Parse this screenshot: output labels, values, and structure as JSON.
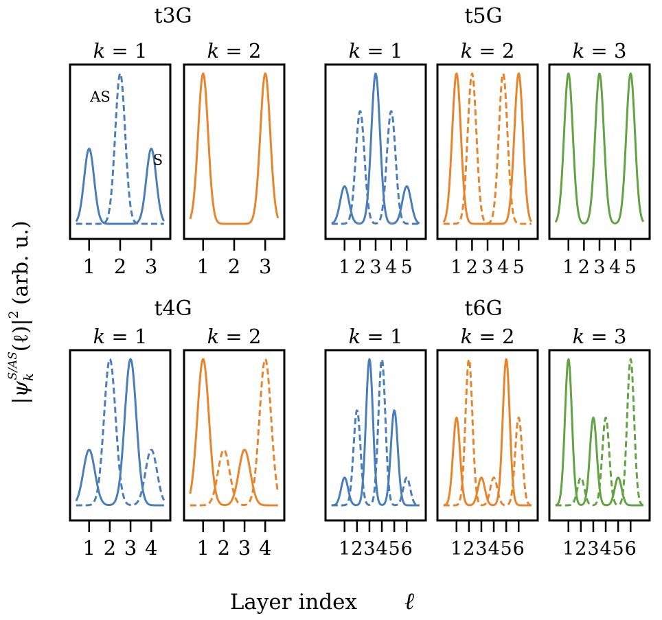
{
  "y_axis_label": "|ψ_k^{S/AS}(ℓ)|² (arb. u.)",
  "y_axis_label_parts": {
    "pre": "|",
    "psi": "ψ",
    "sub": "k",
    "sup": "S/AS",
    "arg": "(ℓ)",
    "post": "|",
    "power": "2",
    "units": "(arb. u.)"
  },
  "x_axis_label": "Layer index",
  "x_axis_symbol": "ℓ",
  "k_prefix": "k",
  "k_eq": "=",
  "legend_annotations": {
    "as": "AS",
    "s": "S"
  },
  "colors": {
    "k1": "#4a7ebb",
    "k2": "#e6852b",
    "k3": "#62a344",
    "frame": "#000000"
  },
  "chart_data": [
    {
      "type": "line",
      "group": "t3G",
      "title": "t3G",
      "layers": [
        1,
        2,
        3
      ],
      "tick_labels": [
        "1",
        "2",
        "3"
      ],
      "panels": [
        {
          "k": 1,
          "k_label": "1",
          "color": "k1",
          "series": [
            {
              "name": "S",
              "style": "solid",
              "values": [
                0.5,
                0.0,
                0.5
              ]
            },
            {
              "name": "AS",
              "style": "dashed",
              "values": [
                0.0,
                1.0,
                0.0
              ]
            }
          ]
        },
        {
          "k": 2,
          "k_label": "2",
          "color": "k2",
          "series": [
            {
              "name": "S",
              "style": "solid",
              "values": [
                1.0,
                0.0,
                1.0
              ]
            }
          ]
        }
      ]
    },
    {
      "type": "line",
      "group": "t5G",
      "title": "t5G",
      "layers": [
        1,
        2,
        3,
        4,
        5
      ],
      "tick_labels": [
        "1",
        "2",
        "3",
        "4",
        "5"
      ],
      "panels": [
        {
          "k": 1,
          "k_label": "1",
          "color": "k1",
          "series": [
            {
              "name": "S",
              "style": "solid",
              "values": [
                0.25,
                0.0,
                1.0,
                0.0,
                0.25
              ]
            },
            {
              "name": "AS",
              "style": "dashed",
              "values": [
                0.0,
                0.75,
                0.0,
                0.75,
                0.0
              ]
            }
          ]
        },
        {
          "k": 2,
          "k_label": "2",
          "color": "k2",
          "series": [
            {
              "name": "S",
              "style": "solid",
              "values": [
                1.0,
                0.0,
                0.0,
                0.0,
                1.0
              ]
            },
            {
              "name": "AS",
              "style": "dashed",
              "values": [
                0.0,
                1.0,
                0.0,
                1.0,
                0.0
              ]
            }
          ]
        },
        {
          "k": 3,
          "k_label": "3",
          "color": "k3",
          "series": [
            {
              "name": "S",
              "style": "solid",
              "values": [
                1.0,
                0.0,
                1.0,
                0.0,
                1.0
              ]
            }
          ]
        }
      ]
    },
    {
      "type": "line",
      "group": "t4G",
      "title": "t4G",
      "layers": [
        1,
        2,
        3,
        4
      ],
      "tick_labels": [
        "1",
        "2",
        "3",
        "4"
      ],
      "panels": [
        {
          "k": 1,
          "k_label": "1",
          "color": "k1",
          "series": [
            {
              "name": "S",
              "style": "solid",
              "values": [
                0.38,
                0.0,
                1.0,
                0.0
              ]
            },
            {
              "name": "AS",
              "style": "dashed",
              "values": [
                0.0,
                1.0,
                0.0,
                0.38
              ]
            }
          ]
        },
        {
          "k": 2,
          "k_label": "2",
          "color": "k2",
          "series": [
            {
              "name": "S",
              "style": "solid",
              "values": [
                1.0,
                0.0,
                0.38,
                0.0
              ]
            },
            {
              "name": "AS",
              "style": "dashed",
              "values": [
                0.0,
                0.38,
                0.0,
                1.0
              ]
            }
          ]
        }
      ]
    },
    {
      "type": "line",
      "group": "t6G",
      "title": "t6G",
      "layers": [
        1,
        2,
        3,
        4,
        5,
        6
      ],
      "tick_labels": [
        "1",
        "2",
        "3",
        "4",
        "5",
        "6"
      ],
      "panels": [
        {
          "k": 1,
          "k_label": "1",
          "color": "k1",
          "series": [
            {
              "name": "S",
              "style": "solid",
              "values": [
                0.19,
                0.0,
                1.0,
                0.0,
                0.65,
                0.0
              ]
            },
            {
              "name": "AS",
              "style": "dashed",
              "values": [
                0.0,
                0.65,
                0.0,
                1.0,
                0.0,
                0.19
              ]
            }
          ]
        },
        {
          "k": 2,
          "k_label": "2",
          "color": "k2",
          "series": [
            {
              "name": "S",
              "style": "solid",
              "values": [
                0.6,
                0.0,
                0.19,
                0.0,
                1.0,
                0.0
              ]
            },
            {
              "name": "AS",
              "style": "dashed",
              "values": [
                0.0,
                1.0,
                0.0,
                0.19,
                0.0,
                0.6
              ]
            }
          ]
        },
        {
          "k": 3,
          "k_label": "3",
          "color": "k3",
          "series": [
            {
              "name": "S",
              "style": "solid",
              "values": [
                1.0,
                0.0,
                0.6,
                0.0,
                0.19,
                0.0
              ]
            },
            {
              "name": "AS",
              "style": "dashed",
              "values": [
                0.0,
                0.19,
                0.0,
                0.6,
                0.0,
                1.0
              ]
            }
          ]
        }
      ]
    }
  ]
}
